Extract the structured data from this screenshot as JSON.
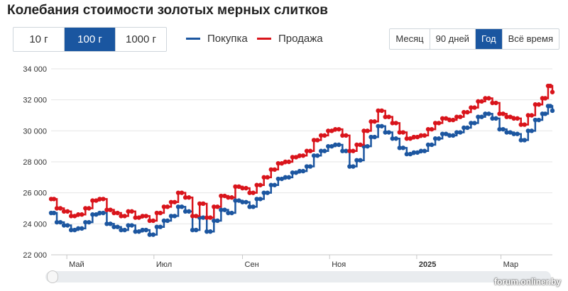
{
  "title": "Колебания стоимости золотых мерных слитков",
  "weights": [
    {
      "label": "10 г",
      "active": false
    },
    {
      "label": "100 г",
      "active": true
    },
    {
      "label": "1000 г",
      "active": false
    }
  ],
  "legend": {
    "buy": "Покупка",
    "sell": "Продажа"
  },
  "periods": [
    {
      "label": "Месяц",
      "active": false
    },
    {
      "label": "90 дней",
      "active": false
    },
    {
      "label": "Год",
      "active": true
    },
    {
      "label": "Всё время",
      "active": false
    }
  ],
  "watermark": "forum.onliner.by",
  "colors": {
    "buy": "#1c56a0",
    "sell": "#d9141b",
    "active_button": "#1a56a0",
    "grid": "#e6e6e6"
  },
  "chart_data": {
    "type": "line",
    "ylim": [
      22000,
      34000
    ],
    "yticks": [
      22000,
      24000,
      26000,
      28000,
      30000,
      32000,
      34000
    ],
    "ytick_labels": [
      "22 000",
      "24 000",
      "26 000",
      "28 000",
      "30 000",
      "32 000",
      "34 000"
    ],
    "x_range": [
      "2024-04-20",
      "2025-04-06"
    ],
    "xticks": [
      {
        "date": "2024-05-01",
        "label": "Май",
        "bold": false
      },
      {
        "date": "2024-07-01",
        "label": "Июл",
        "bold": false
      },
      {
        "date": "2024-09-01",
        "label": "Сен",
        "bold": false
      },
      {
        "date": "2024-11-01",
        "label": "Ноя",
        "bold": false
      },
      {
        "date": "2025-01-01",
        "label": "2025",
        "bold": true
      },
      {
        "date": "2025-03-01",
        "label": "Мар",
        "bold": false
      }
    ],
    "grid": "horizontal",
    "series": [
      {
        "name": "Покупка",
        "key": "buy",
        "points": [
          [
            "2024-04-20",
            24700
          ],
          [
            "2024-04-24",
            24100
          ],
          [
            "2024-04-29",
            23900
          ],
          [
            "2024-05-04",
            23600
          ],
          [
            "2024-05-09",
            23700
          ],
          [
            "2024-05-14",
            24100
          ],
          [
            "2024-05-19",
            24600
          ],
          [
            "2024-05-24",
            24700
          ],
          [
            "2024-05-29",
            24000
          ],
          [
            "2024-06-03",
            23800
          ],
          [
            "2024-06-08",
            23600
          ],
          [
            "2024-06-13",
            23900
          ],
          [
            "2024-06-18",
            23500
          ],
          [
            "2024-06-23",
            23600
          ],
          [
            "2024-06-28",
            23300
          ],
          [
            "2024-07-03",
            23800
          ],
          [
            "2024-07-08",
            24200
          ],
          [
            "2024-07-13",
            24500
          ],
          [
            "2024-07-18",
            25100
          ],
          [
            "2024-07-23",
            24800
          ],
          [
            "2024-07-28",
            23600
          ],
          [
            "2024-08-02",
            24400
          ],
          [
            "2024-08-07",
            23500
          ],
          [
            "2024-08-12",
            24200
          ],
          [
            "2024-08-17",
            24900
          ],
          [
            "2024-08-22",
            24700
          ],
          [
            "2024-08-27",
            25500
          ],
          [
            "2024-09-01",
            25400
          ],
          [
            "2024-09-06",
            25100
          ],
          [
            "2024-09-11",
            25600
          ],
          [
            "2024-09-16",
            26000
          ],
          [
            "2024-09-21",
            26500
          ],
          [
            "2024-09-26",
            26900
          ],
          [
            "2024-10-01",
            27000
          ],
          [
            "2024-10-06",
            27300
          ],
          [
            "2024-10-11",
            27400
          ],
          [
            "2024-10-16",
            27700
          ],
          [
            "2024-10-21",
            28400
          ],
          [
            "2024-10-26",
            28700
          ],
          [
            "2024-10-31",
            29000
          ],
          [
            "2024-11-05",
            29100
          ],
          [
            "2024-11-10",
            28700
          ],
          [
            "2024-11-15",
            27700
          ],
          [
            "2024-11-20",
            28100
          ],
          [
            "2024-11-25",
            29000
          ],
          [
            "2024-11-30",
            29600
          ],
          [
            "2024-12-05",
            30300
          ],
          [
            "2024-12-10",
            29900
          ],
          [
            "2024-12-15",
            29500
          ],
          [
            "2024-12-20",
            28900
          ],
          [
            "2024-12-25",
            28500
          ],
          [
            "2024-12-30",
            28600
          ],
          [
            "2025-01-04",
            28700
          ],
          [
            "2025-01-09",
            29100
          ],
          [
            "2025-01-14",
            29500
          ],
          [
            "2025-01-19",
            29800
          ],
          [
            "2025-01-24",
            29700
          ],
          [
            "2025-01-29",
            29900
          ],
          [
            "2025-02-03",
            30200
          ],
          [
            "2025-02-08",
            30500
          ],
          [
            "2025-02-13",
            30900
          ],
          [
            "2025-02-18",
            31100
          ],
          [
            "2025-02-23",
            30800
          ],
          [
            "2025-02-28",
            30100
          ],
          [
            "2025-03-05",
            29900
          ],
          [
            "2025-03-10",
            29800
          ],
          [
            "2025-03-15",
            29400
          ],
          [
            "2025-03-20",
            30000
          ],
          [
            "2025-03-25",
            30700
          ],
          [
            "2025-03-30",
            31100
          ],
          [
            "2025-04-03",
            31600
          ],
          [
            "2025-04-06",
            31300
          ]
        ]
      },
      {
        "name": "Продажа",
        "key": "sell",
        "points": [
          [
            "2024-04-20",
            25600
          ],
          [
            "2024-04-24",
            25000
          ],
          [
            "2024-04-29",
            24800
          ],
          [
            "2024-05-04",
            24500
          ],
          [
            "2024-05-09",
            24600
          ],
          [
            "2024-05-14",
            25000
          ],
          [
            "2024-05-19",
            25500
          ],
          [
            "2024-05-24",
            25600
          ],
          [
            "2024-05-29",
            24900
          ],
          [
            "2024-06-03",
            24700
          ],
          [
            "2024-06-08",
            24500
          ],
          [
            "2024-06-13",
            24800
          ],
          [
            "2024-06-18",
            24400
          ],
          [
            "2024-06-23",
            24500
          ],
          [
            "2024-06-28",
            24200
          ],
          [
            "2024-07-03",
            24700
          ],
          [
            "2024-07-08",
            25100
          ],
          [
            "2024-07-13",
            25400
          ],
          [
            "2024-07-18",
            26000
          ],
          [
            "2024-07-23",
            25700
          ],
          [
            "2024-07-28",
            24500
          ],
          [
            "2024-08-02",
            25300
          ],
          [
            "2024-08-07",
            24400
          ],
          [
            "2024-08-12",
            25100
          ],
          [
            "2024-08-17",
            25800
          ],
          [
            "2024-08-22",
            25700
          ],
          [
            "2024-08-27",
            26400
          ],
          [
            "2024-09-01",
            26300
          ],
          [
            "2024-09-06",
            26000
          ],
          [
            "2024-09-11",
            26500
          ],
          [
            "2024-09-16",
            27000
          ],
          [
            "2024-09-21",
            27500
          ],
          [
            "2024-09-26",
            27900
          ],
          [
            "2024-10-01",
            28000
          ],
          [
            "2024-10-06",
            28300
          ],
          [
            "2024-10-11",
            28400
          ],
          [
            "2024-10-16",
            28700
          ],
          [
            "2024-10-21",
            29400
          ],
          [
            "2024-10-26",
            29700
          ],
          [
            "2024-10-31",
            30000
          ],
          [
            "2024-11-05",
            30100
          ],
          [
            "2024-11-10",
            29700
          ],
          [
            "2024-11-15",
            28700
          ],
          [
            "2024-11-20",
            29100
          ],
          [
            "2024-11-25",
            30000
          ],
          [
            "2024-11-30",
            30600
          ],
          [
            "2024-12-05",
            31300
          ],
          [
            "2024-12-10",
            30900
          ],
          [
            "2024-12-15",
            30500
          ],
          [
            "2024-12-20",
            29900
          ],
          [
            "2024-12-25",
            29500
          ],
          [
            "2024-12-30",
            29600
          ],
          [
            "2025-01-04",
            29700
          ],
          [
            "2025-01-09",
            30100
          ],
          [
            "2025-01-14",
            30500
          ],
          [
            "2025-01-19",
            30800
          ],
          [
            "2025-01-24",
            30700
          ],
          [
            "2025-01-29",
            30900
          ],
          [
            "2025-02-03",
            31200
          ],
          [
            "2025-02-08",
            31500
          ],
          [
            "2025-02-13",
            31900
          ],
          [
            "2025-02-18",
            32100
          ],
          [
            "2025-02-23",
            31800
          ],
          [
            "2025-02-28",
            31100
          ],
          [
            "2025-03-05",
            30900
          ],
          [
            "2025-03-10",
            30800
          ],
          [
            "2025-03-15",
            30400
          ],
          [
            "2025-03-20",
            31000
          ],
          [
            "2025-03-25",
            31700
          ],
          [
            "2025-03-30",
            32100
          ],
          [
            "2025-04-03",
            32900
          ],
          [
            "2025-04-06",
            32500
          ]
        ]
      }
    ]
  }
}
